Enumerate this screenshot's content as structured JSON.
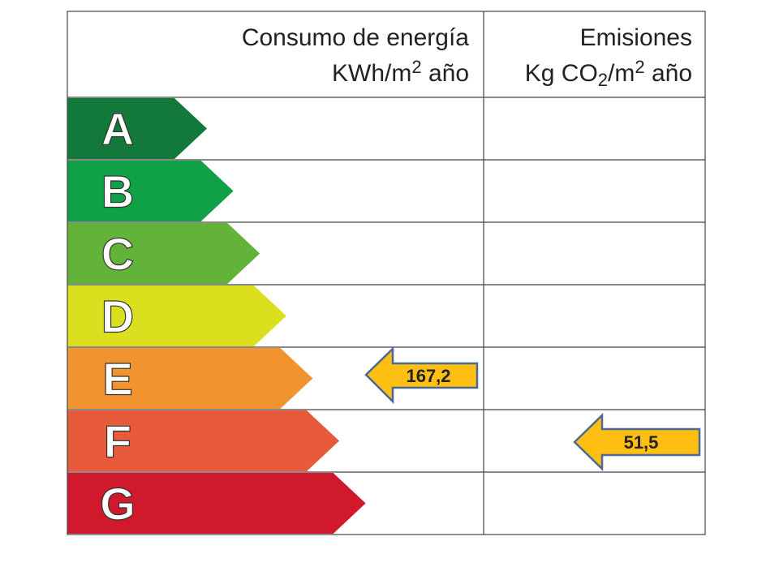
{
  "header": {
    "energy_title": "Consumo de energía",
    "energy_unit": [
      "KWh/m",
      "2",
      " año"
    ],
    "emissions_title": "Emisiones",
    "emissions_unit": [
      "Kg CO",
      "2",
      "/m",
      "2",
      " año"
    ]
  },
  "ratings": [
    {
      "letter": "A",
      "color": "#12793b"
    },
    {
      "letter": "B",
      "color": "#10a045"
    },
    {
      "letter": "C",
      "color": "#63b33a"
    },
    {
      "letter": "D",
      "color": "#dcdf1e"
    },
    {
      "letter": "E",
      "color": "#f1932f"
    },
    {
      "letter": "F",
      "color": "#e75b3b"
    },
    {
      "letter": "G",
      "color": "#d1192c"
    }
  ],
  "indicators": {
    "energy_value": "167,2",
    "emissions_value": "51,5"
  }
}
